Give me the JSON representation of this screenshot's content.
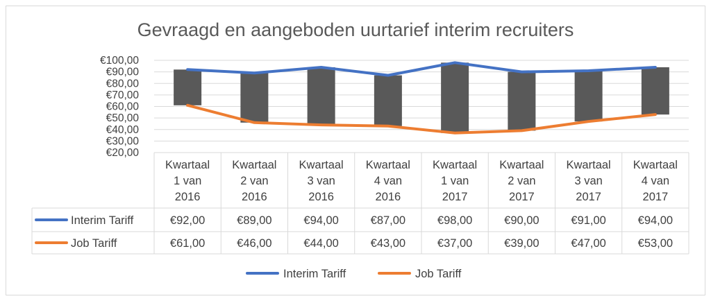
{
  "chart_data": {
    "type": "line",
    "title": "Gevraagd en aangeboden uurtarief interim recruiters",
    "categories": [
      [
        "Kwartaal",
        "1 van",
        "2016"
      ],
      [
        "Kwartaal",
        "2 van",
        "2016"
      ],
      [
        "Kwartaal",
        "3 van",
        "2016"
      ],
      [
        "Kwartaal",
        "4 van",
        "2016"
      ],
      [
        "Kwartaal",
        "1 van",
        "2017"
      ],
      [
        "Kwartaal",
        "2 van",
        "2017"
      ],
      [
        "Kwartaal",
        "3 van",
        "2017"
      ],
      [
        "Kwartaal",
        "4 van",
        "2017"
      ]
    ],
    "yticks": [
      "€100,00",
      "€90,00",
      "€80,00",
      "€70,00",
      "€60,00",
      "€50,00",
      "€40,00",
      "€30,00",
      "€20,00"
    ],
    "ylim": [
      20,
      100
    ],
    "grid": true,
    "high_low_bars": true,
    "series": [
      {
        "name": "Interim Tariff",
        "color": "#4472C4",
        "values": [
          92,
          89,
          94,
          87,
          98,
          90,
          91,
          94
        ],
        "labels": [
          "€92,00",
          "€89,00",
          "€94,00",
          "€87,00",
          "€98,00",
          "€90,00",
          "€91,00",
          "€94,00"
        ]
      },
      {
        "name": "Job Tariff",
        "color": "#ED7D31",
        "values": [
          61,
          46,
          44,
          43,
          37,
          39,
          47,
          53
        ],
        "labels": [
          "€61,00",
          "€46,00",
          "€44,00",
          "€43,00",
          "€37,00",
          "€39,00",
          "€47,00",
          "€53,00"
        ]
      }
    ],
    "bar_color": "#595959",
    "legend_position": "bottom"
  }
}
